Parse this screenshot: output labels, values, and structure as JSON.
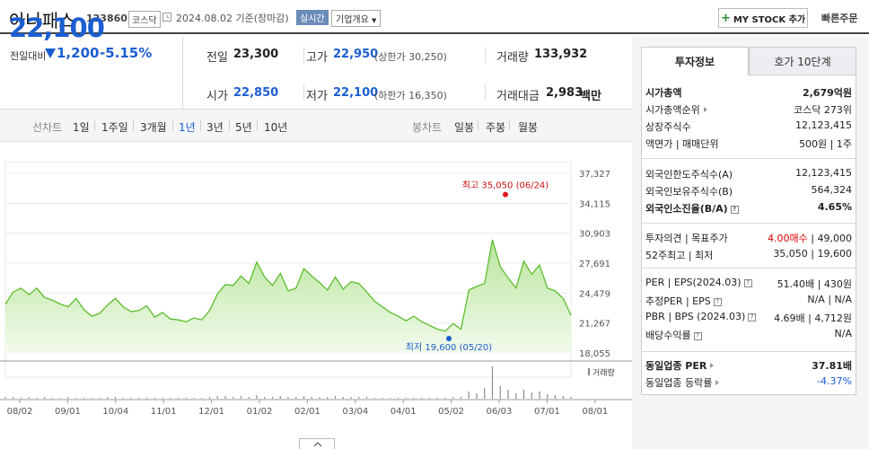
{
  "header": {
    "stock_name": "아나패스",
    "stock_code": "123860",
    "market": "코스닥",
    "date_text": "2024.08.02  기준(장마감)",
    "live_label": "실시간",
    "company_overview": "기업개요",
    "mystock_label": "MY STOCK 추가",
    "quick_order": "빠른주문"
  },
  "price": {
    "current": "22,100",
    "prev_label": "전일대비",
    "change_amount": "1,200",
    "change_pct": "-5.15%",
    "prev_close_label": "전일",
    "prev_close": "23,300",
    "high_label": "고가",
    "high": "22,950",
    "upper_limit": "(상한가 30,250)",
    "volume_label": "거래량",
    "volume": "133,932",
    "open_label": "시가",
    "open": "22,850",
    "low_label": "저가",
    "low": "22,100",
    "lower_limit": "(하한가 16,350)",
    "value_label": "거래대금",
    "value": "2,983",
    "value_unit": "백만"
  },
  "periods": {
    "line_label": "선차트",
    "items": [
      "1일",
      "1주일",
      "3개월",
      "1년",
      "3년",
      "5년",
      "10년"
    ],
    "active": "1년",
    "candle_label": "봉차트",
    "candle_items": [
      "일봉",
      "주봉",
      "월봉"
    ]
  },
  "chart_data": {
    "type": "area",
    "y_ticks": [
      "37,327",
      "34,115",
      "30,903",
      "27,691",
      "24,479",
      "21,267",
      "18,055"
    ],
    "ylim": [
      18055,
      37327
    ],
    "x_ticks": [
      "08/02",
      "09/01",
      "10/04",
      "11/01",
      "12/01",
      "01/02",
      "02/01",
      "03/04",
      "04/01",
      "05/02",
      "06/03",
      "07/01",
      "08/01"
    ],
    "series": [
      {
        "values": [
          23300,
          24600,
          25000,
          24300,
          25000,
          24000,
          23700,
          23300,
          23000,
          23900,
          22700,
          22000,
          22300,
          23200,
          23900,
          23000,
          22500,
          22600,
          23100,
          21900,
          22400,
          21700,
          21600,
          21400,
          21800,
          21600,
          22600,
          24400,
          25400,
          25300,
          26300,
          25500,
          27800,
          26200,
          25300,
          26600,
          24700,
          25000,
          27100,
          26300,
          25600,
          24800,
          26200,
          24900,
          25700,
          25500,
          24600,
          23600,
          23000,
          22400,
          22000,
          21500,
          22000,
          21400,
          21000,
          20600,
          20400,
          21200,
          20600,
          24800,
          25200,
          25500,
          30200,
          27300,
          26100,
          25000,
          27900,
          26500,
          27500,
          25000,
          24700,
          23900,
          22100
        ]
      }
    ],
    "annotations": {
      "high_label": "최고",
      "high_value": "35,050",
      "high_date": "(06/24)",
      "low_label": "최저",
      "low_value": "19,600",
      "low_date": "(05/20)"
    },
    "volume_label": "거래량",
    "volume_values": [
      2,
      2,
      1,
      2,
      1,
      2,
      1,
      1,
      2,
      1,
      1,
      1,
      1,
      2,
      2,
      1,
      1,
      1,
      1,
      1,
      1,
      1,
      1,
      1,
      1,
      1,
      2,
      3,
      3,
      2,
      3,
      2,
      4,
      2,
      2,
      3,
      2,
      2,
      3,
      2,
      2,
      2,
      3,
      2,
      2,
      2,
      2,
      1,
      1,
      1,
      1,
      1,
      1,
      1,
      1,
      1,
      1,
      2,
      2,
      8,
      6,
      12,
      36,
      14,
      10,
      6,
      10,
      7,
      8,
      5,
      4,
      3,
      2
    ]
  },
  "invest_tabs": {
    "tab1": "투자정보",
    "tab2": "호가 10단계"
  },
  "invest_info": {
    "market_cap_label": "시가총액",
    "market_cap": "2,679억원",
    "rank_label": "시가총액순위",
    "rank": "코스닥 273위",
    "shares_label": "상장주식수",
    "shares": "12,123,415",
    "face_label": "액면가 | 매매단위",
    "face": "500원 | 1주",
    "foreign_limit_label": "외국인한도주식수(A)",
    "foreign_limit": "12,123,415",
    "foreign_hold_label": "외국인보유주식수(B)",
    "foreign_hold": "564,324",
    "foreign_ratio_label": "외국인소진율(B/A)",
    "foreign_ratio": "4.65%",
    "opinion_label": "투자의견 | 목표주가",
    "opinion": "4.00매수",
    "target": " | 49,000",
    "week52_label": "52주최고 | 최저",
    "week52": "35,050 | 19,600",
    "per_label": "PER | EPS(2024.03)",
    "per": "51.40배 | 430원",
    "est_label": "추정PER | EPS",
    "est": "N/A | N/A",
    "pbr_label": "PBR | BPS (2024.03)",
    "pbr": "4.69배 | 4,712원",
    "div_label": "배당수익률",
    "div": "N/A",
    "ind_per_label": "동일업종 PER",
    "ind_per": "37.81배",
    "ind_rate_label": "동일업종 등락률",
    "ind_rate": "-4.37%"
  }
}
